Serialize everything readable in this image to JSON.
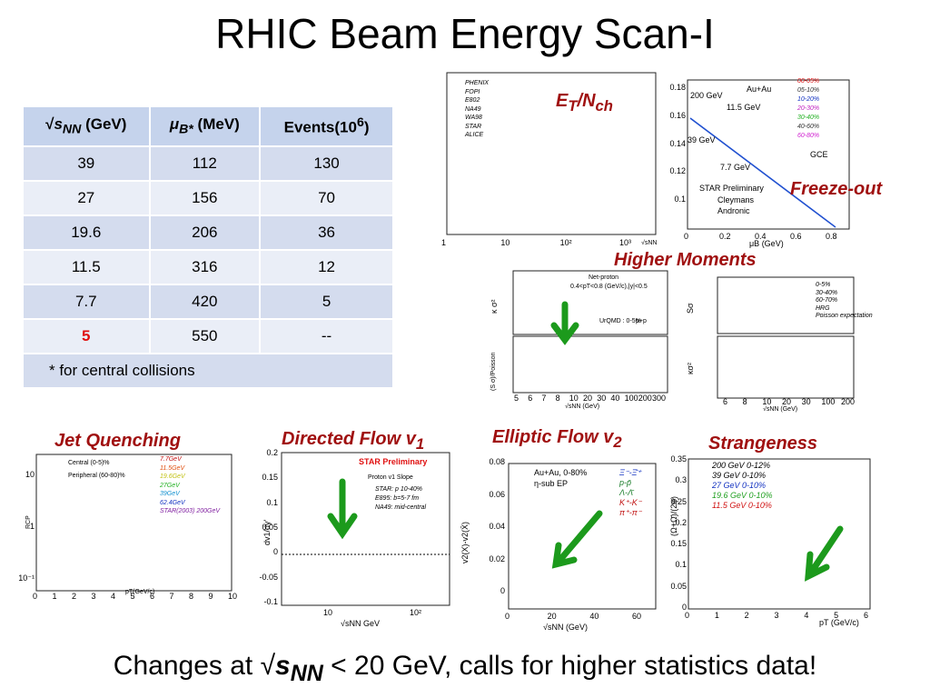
{
  "title": "RHIC Beam Energy Scan-I",
  "table": {
    "header": [
      [
        "√",
        "s",
        "NN",
        " (GeV)"
      ],
      [
        "μ",
        "B*",
        " (MeV)"
      ],
      [
        "Events(10",
        "6",
        ")"
      ]
    ],
    "rows": [
      [
        "39",
        "112",
        "130"
      ],
      [
        "27",
        "156",
        "70"
      ],
      [
        "19.6",
        "206",
        "36"
      ],
      [
        "11.5",
        "316",
        "12"
      ],
      [
        "7.7",
        "420",
        "5"
      ],
      [
        "5",
        "550",
        "--"
      ]
    ],
    "footnote": "* for central collisions"
  },
  "panels": {
    "et": {
      "label": [
        "E",
        "T",
        "/N",
        "ch"
      ],
      "legend": [
        "PHENIX",
        "FOPI",
        "E802",
        "NA49",
        "WA98",
        "STAR",
        "ALICE"
      ],
      "xticks": [
        "1",
        "10",
        "10²",
        "10³"
      ],
      "xlabel": "√sNN"
    },
    "freeze": {
      "label": "Freeze-out",
      "legend": [
        "00-05%",
        "05-10%",
        "10-20%",
        "20-30%",
        "30-40%",
        "40-60%",
        "60-80%"
      ],
      "notes": [
        "Au+Au",
        "200 GeV",
        "11.5 GeV",
        "39 GeV",
        "7.7 GeV",
        "GCE",
        "STAR Preliminary",
        "Cleymans",
        "Andronic"
      ],
      "yticks": [
        "0.18",
        "0.16",
        "0.14",
        "0.12",
        "0.1"
      ],
      "xticks": [
        "0",
        "0.2",
        "0.4",
        "0.6",
        "0.8"
      ],
      "xlabel": "μB (GeV)"
    },
    "moments": {
      "label": "Higher Moments",
      "notes": [
        "Net-proton",
        "0.4<pT<0.8 (GeV/c),|y|<0.5",
        "UrQMD : 0-5%",
        "p+p"
      ],
      "ylabels": [
        "κ σ²",
        "(S σ)/Poisson"
      ],
      "xticks": [
        "5",
        "6",
        "7",
        "8",
        "10",
        "20",
        "30",
        "40",
        "100",
        "200",
        "300"
      ],
      "xlabel": "√sNN (GeV)",
      "legend": [
        "0-5%",
        "30-40%",
        "60-70%",
        "HRG",
        "Poisson expectation"
      ],
      "ylabels2": [
        "Sσ",
        "κσ²"
      ],
      "xticks2": [
        "6",
        "8",
        "10",
        "20",
        "30",
        "100",
        "200"
      ]
    },
    "jet": {
      "label": "Jet Quenching",
      "notes": [
        "Central (0-5)%",
        "Peripheral (60-80)%"
      ],
      "legend": [
        "7.7GeV",
        "11.5GeV",
        "19.6GeV",
        "27GeV",
        "39GeV",
        "62.4GeV",
        "STAR(2003) 200GeV"
      ],
      "yticks": [
        "10",
        "1",
        "10⁻¹"
      ],
      "xticks": [
        "0",
        "1",
        "2",
        "3",
        "4",
        "5",
        "6",
        "7",
        "8",
        "9",
        "10"
      ],
      "xlabel": "pT(GeV/c)",
      "ylabel": "RCP"
    },
    "directed": {
      "label": [
        "Directed Flow v",
        "1"
      ],
      "notes": [
        "STAR Preliminary",
        "Proton v1 Slope"
      ],
      "legend": [
        "STAR: p 10-40%",
        "E895: b=5-7 fm",
        "NA49: mid-central"
      ],
      "yticks": [
        "0.2",
        "0.15",
        "0.1",
        "0.05",
        "0",
        "-0.05",
        "-0.1"
      ],
      "xticks": [
        "10",
        "10²"
      ],
      "xlabel": "√sNN GeV",
      "ylabel": "dv1/dy'"
    },
    "elliptic": {
      "label": [
        "Elliptic Flow v",
        "2"
      ],
      "notes": [
        "Au+Au,  0-80%",
        "η-sub EP"
      ],
      "legend": [
        "Ξ⁻-Ξ̄⁺",
        "p-p̄",
        "Λ-Λ̄",
        "K⁺-K⁻",
        "π⁺-π⁻"
      ],
      "yticks": [
        "0.08",
        "0.06",
        "0.04",
        "0.02",
        "0"
      ],
      "xticks": [
        "0",
        "20",
        "40",
        "60"
      ],
      "xlabel": "√sNN  (GeV)",
      "ylabel": "v2(X)-v2(X̄)"
    },
    "strange": {
      "label": "Strangeness",
      "legend": [
        "200  GeV 0-12%",
        "39   GeV 0-10%",
        "27   GeV 0-10%",
        "19.6 GeV 0-10%",
        "11.5 GeV 0-10%"
      ],
      "yticks": [
        "0.35",
        "0.3",
        "0.25",
        "0.2",
        "0.15",
        "0.1",
        "0.05",
        "0"
      ],
      "xticks": [
        "0",
        "1",
        "2",
        "3",
        "4",
        "5",
        "6"
      ],
      "xlabel": "pT (GeV/c)",
      "ylabel": "(Ω+Ω̄)/(2φ)"
    }
  },
  "footer": [
    "Changes at √",
    "s",
    "NN",
    " < 20 GeV, calls for higher statistics data!"
  ]
}
